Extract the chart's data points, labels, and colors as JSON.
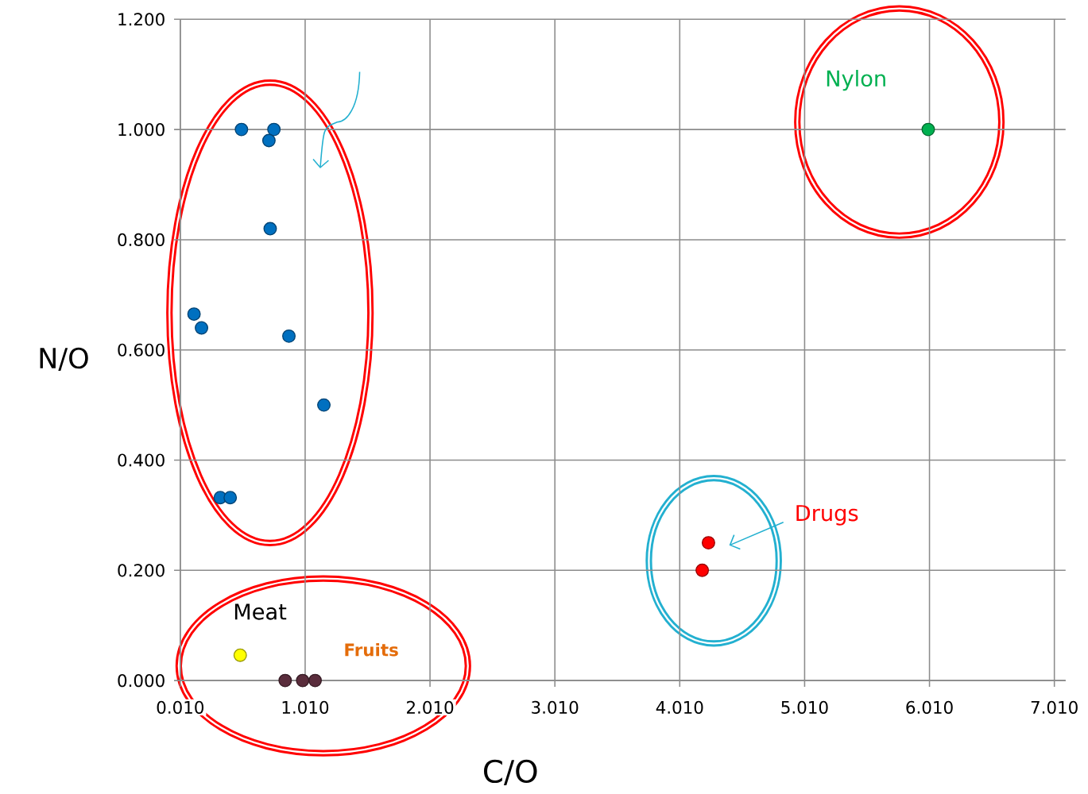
{
  "chart_data": {
    "type": "scatter",
    "xlabel": "C/O",
    "ylabel": "N/O",
    "xlim": [
      0.01,
      7.1
    ],
    "ylim": [
      0,
      1.2
    ],
    "xticks": [
      {
        "value": 0.01,
        "label": "0.010"
      },
      {
        "value": 1.01,
        "label": "1.010"
      },
      {
        "value": 2.01,
        "label": "2.010"
      },
      {
        "value": 3.01,
        "label": "3.010"
      },
      {
        "value": 4.01,
        "label": "4.010"
      },
      {
        "value": 5.01,
        "label": "5.010"
      },
      {
        "value": 6.01,
        "label": "6.010"
      },
      {
        "value": 7.01,
        "label": "7.010"
      }
    ],
    "yticks": [
      {
        "value": 0,
        "label": "0.000"
      },
      {
        "value": 0.2,
        "label": "0.200"
      },
      {
        "value": 0.4,
        "label": "0.400"
      },
      {
        "value": 0.6,
        "label": "0.600"
      },
      {
        "value": 0.8,
        "label": "0.800"
      },
      {
        "value": 1.0,
        "label": "1.000"
      },
      {
        "value": 1.2,
        "label": "1.200"
      }
    ],
    "grid": true,
    "marker": "circle",
    "series": [
      {
        "color": "#0070c0",
        "x": [
          0.5,
          0.76,
          0.72,
          0.73,
          0.12,
          0.18,
          0.88,
          1.16,
          0.33,
          0.41
        ],
        "values": [
          1.0,
          1.0,
          0.98,
          0.82,
          0.665,
          0.64,
          0.625,
          0.5,
          0.332,
          0.332
        ]
      },
      {
        "name": "Meat",
        "color": "#ffff00",
        "x": [
          0.49
        ],
        "values": [
          0.046
        ]
      },
      {
        "name": "Fruits",
        "color": "#5a2d3c",
        "x": [
          0.85,
          0.99,
          1.09
        ],
        "values": [
          0,
          0,
          0
        ]
      },
      {
        "name": "Drugs",
        "color": "#ff0000",
        "x": [
          4.24,
          4.19
        ],
        "values": [
          0.25,
          0.2
        ]
      },
      {
        "name": "Nylon",
        "color": "#00b050",
        "x": [
          6.0
        ],
        "values": [
          1.0
        ]
      }
    ]
  }
}
